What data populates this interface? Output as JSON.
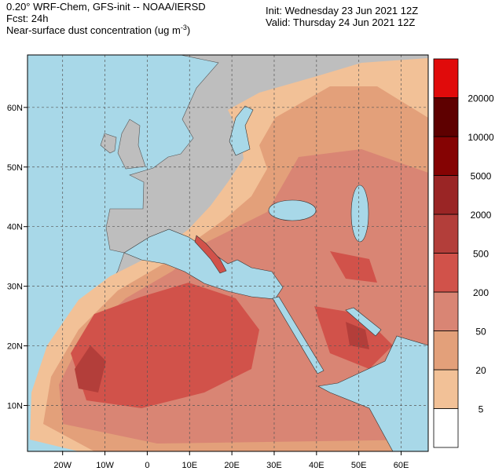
{
  "header": {
    "model": "0.20° WRF-Chem, GFS-init -- NOAA/IERSD",
    "forecast": "Fcst: 24h",
    "field": {
      "text": "Near-surface dust concentration (ug m",
      "superscript": "-3",
      "end": ")"
    },
    "init": "Init: Wednesday 23 Jun 2021  12Z",
    "valid": "Valid: Thursday 24 Jun 2021  12Z"
  },
  "map": {
    "xlim": [
      -28.3,
      66.4
    ],
    "ylim": [
      2.3,
      68.8
    ],
    "xticks": [
      {
        "value": -20,
        "label": "20W"
      },
      {
        "value": -10,
        "label": "10W"
      },
      0,
      {
        "value": 10,
        "label": "10E"
      },
      {
        "value": 20,
        "label": "20E"
      },
      {
        "value": 30,
        "label": "30E"
      },
      {
        "value": 40,
        "label": "40E"
      },
      {
        "value": 50,
        "label": "50E"
      },
      {
        "value": 60,
        "label": "60E"
      }
    ],
    "yticks": [
      {
        "value": 10,
        "label": "10N"
      },
      {
        "value": 20,
        "label": "20N"
      },
      {
        "value": 30,
        "label": "30N"
      },
      {
        "value": 40,
        "label": "40N"
      },
      {
        "value": 50,
        "label": "50N"
      },
      {
        "value": 60,
        "label": "60N"
      }
    ]
  },
  "colorbar": {
    "levels": [
      5,
      20,
      50,
      200,
      500,
      2000,
      5000,
      10000,
      20000
    ],
    "colors": [
      "#ffffff",
      "#f2c197",
      "#e3a07a",
      "#d98574",
      "#d1524a",
      "#b33e3a",
      "#9a2525",
      "#850303",
      "#5e0000",
      "#e00b0b"
    ]
  }
}
